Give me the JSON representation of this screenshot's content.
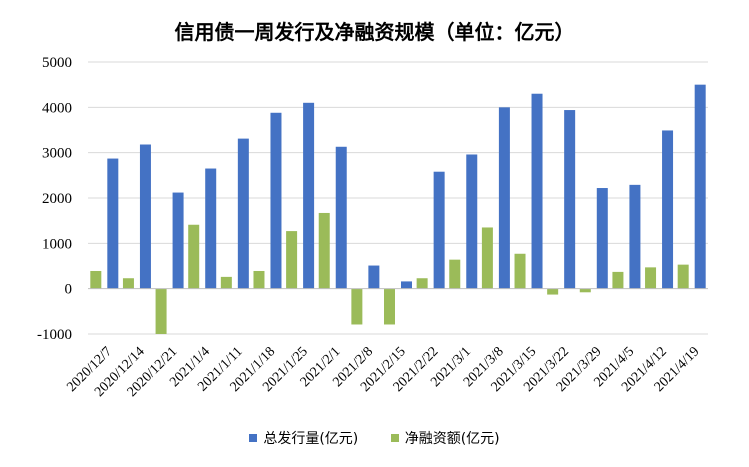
{
  "chart_data": {
    "type": "bar",
    "title": "信用债一周发行及净融资规模（单位：亿元）",
    "categories": [
      "2020/12/7",
      "2020/12/14",
      "2020/12/21",
      "2021/1/4",
      "2021/1/11",
      "2021/1/18",
      "2021/1/25",
      "2021/2/1",
      "2021/2/8",
      "2021/2/15",
      "2021/2/22",
      "2021/3/1",
      "2021/3/8",
      "2021/3/15",
      "2021/3/22",
      "2021/3/29",
      "2021/4/5",
      "2021/4/12",
      "2021/4/19"
    ],
    "series": [
      {
        "name": "总发行量(亿元)",
        "color": "#4472C4",
        "values": [
          2870,
          3180,
          2120,
          2650,
          3310,
          3880,
          4100,
          3130,
          510,
          160,
          2580,
          2960,
          4000,
          4300,
          3940,
          2220,
          2290,
          3490,
          4500
        ]
      },
      {
        "name": "净融资额(亿元)",
        "color": "#9BBB59",
        "values": [
          390,
          230,
          -1000,
          1410,
          260,
          390,
          1270,
          1670,
          -790,
          -790,
          230,
          640,
          1350,
          770,
          -130,
          -80,
          370,
          470,
          530
        ]
      }
    ],
    "ylim": [
      -1000,
      5000
    ],
    "yticks": [
      -1000,
      0,
      1000,
      2000,
      3000,
      4000,
      5000
    ],
    "grid": true,
    "legend_position": "bottom"
  }
}
